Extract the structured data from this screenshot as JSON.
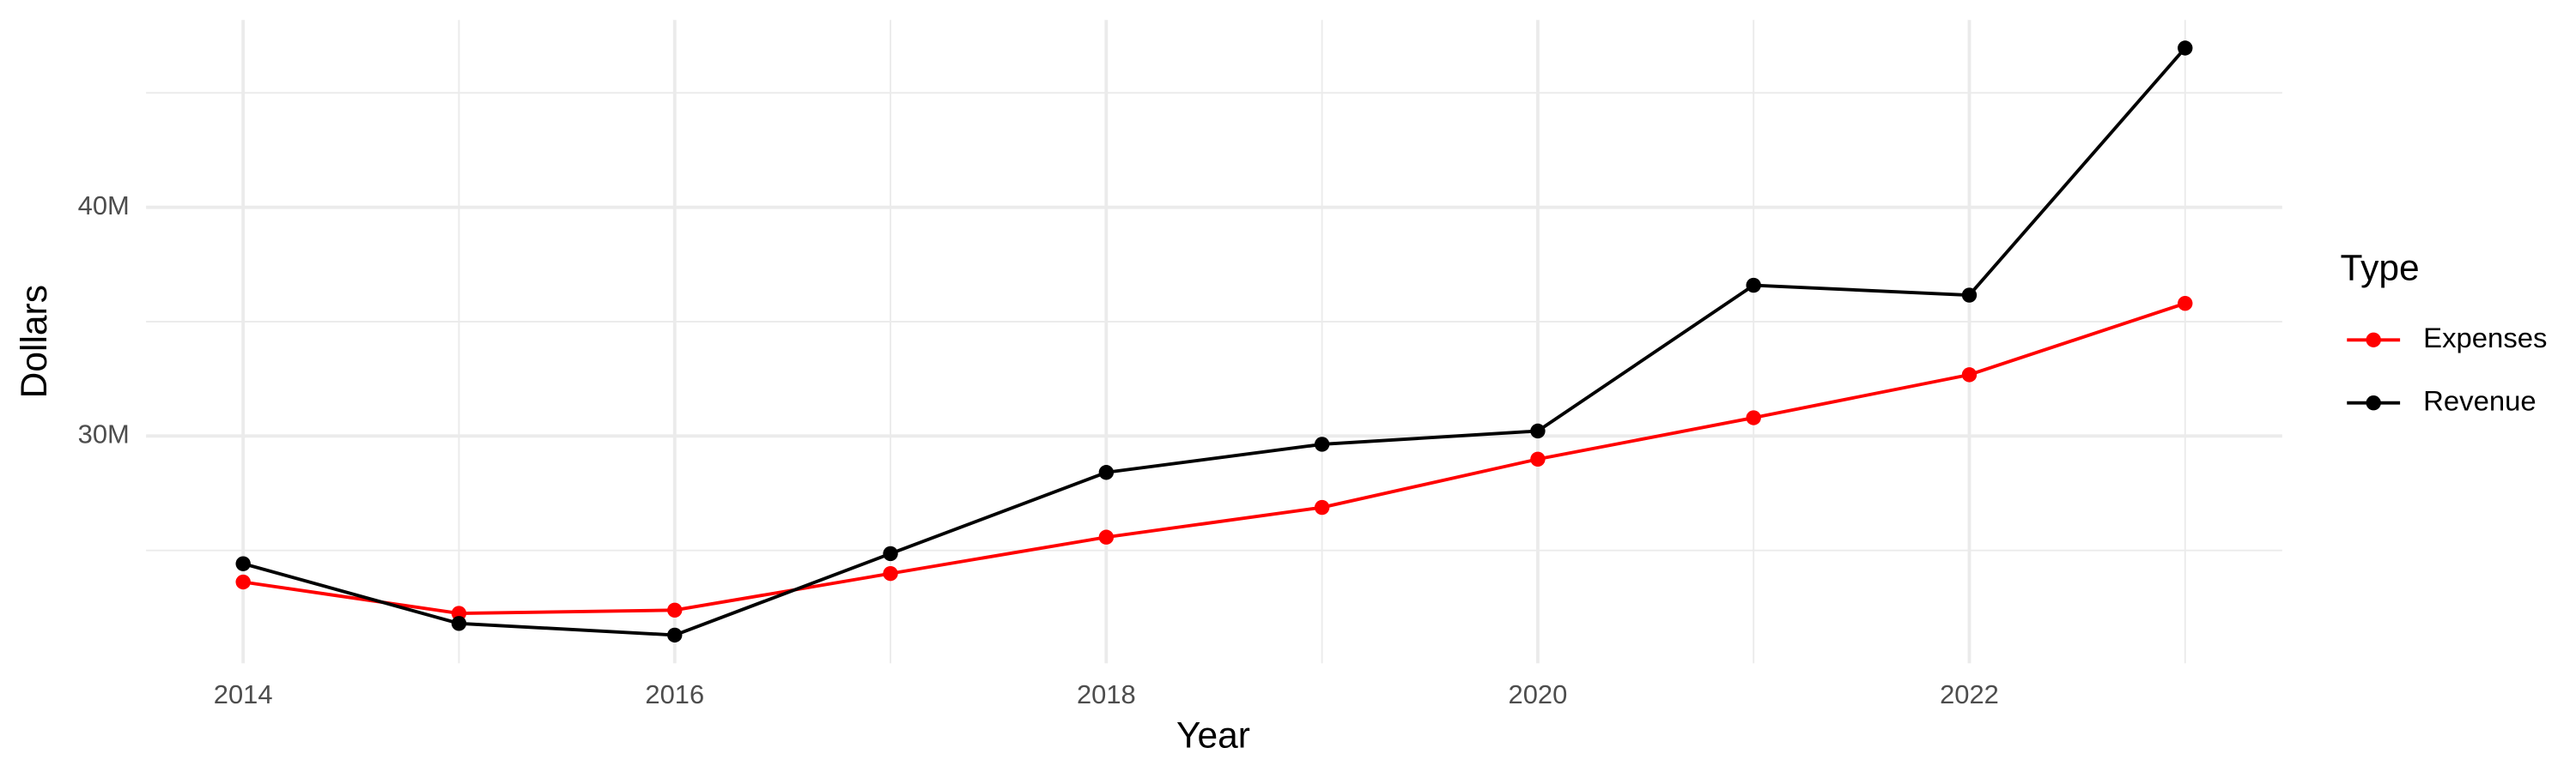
{
  "chart_data": {
    "type": "line",
    "x_label": "Year",
    "y_label": "Dollars",
    "x": [
      2014,
      2015,
      2016,
      2017,
      2018,
      2019,
      2020,
      2021,
      2022,
      2023
    ],
    "series": [
      {
        "name": "Expenses",
        "color": "#ff0000",
        "values": [
          23620000,
          22250000,
          22390000,
          23990000,
          25580000,
          26880000,
          28990000,
          30800000,
          32680000,
          35800000
        ]
      },
      {
        "name": "Revenue",
        "color": "#000000",
        "values": [
          24420000,
          21810000,
          21300000,
          24860000,
          28410000,
          29640000,
          30220000,
          36590000,
          36160000,
          46960000
        ]
      }
    ],
    "xlim": [
      2013.55,
      2023.45
    ],
    "xticks": [
      2014,
      2016,
      2018,
      2020,
      2022
    ],
    "minor_xticks": [
      2015,
      2017,
      2019,
      2021,
      2023
    ],
    "ylim": [
      20070000,
      48190000
    ],
    "yticks": [
      {
        "value": 30000000,
        "label": "30M"
      },
      {
        "value": 40000000,
        "label": "40M"
      }
    ],
    "minor_yticks": [
      25000000,
      35000000,
      45000000
    ],
    "grid": true,
    "legend_title": "Type",
    "legend_position": "right"
  }
}
